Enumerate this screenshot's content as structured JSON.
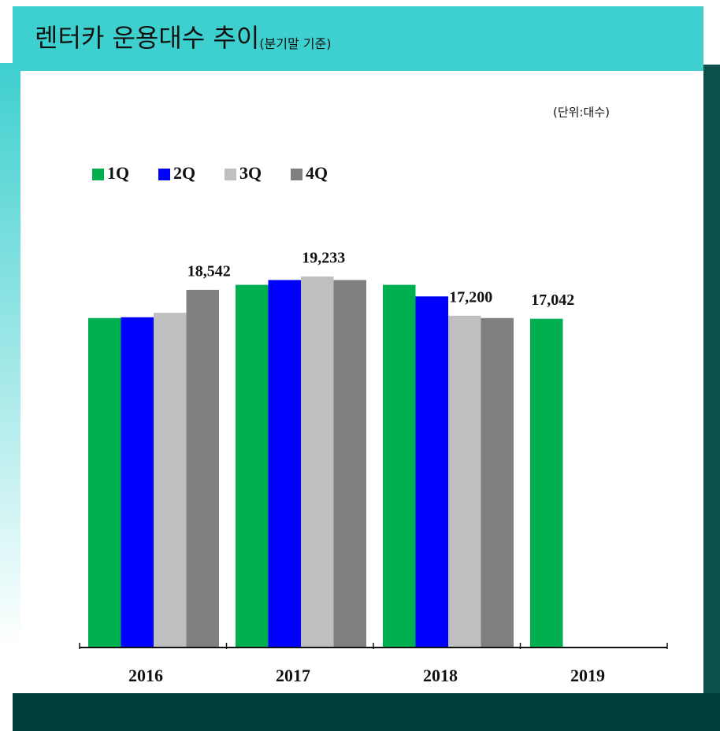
{
  "chart_data": {
    "type": "bar",
    "title": "렌터카 운용대수 추이",
    "subtitle": "(분기말 기준)",
    "unit_label": "(단위:대수)",
    "categories": [
      "2016",
      "2017",
      "2018",
      "2019"
    ],
    "series": [
      {
        "name": "1Q",
        "color": "#00b050",
        "values": [
          17080,
          18800,
          18800,
          17042
        ],
        "value_labels": [
          null,
          null,
          null,
          "17,042"
        ]
      },
      {
        "name": "2Q",
        "color": "#0000ff",
        "values": [
          17120,
          19050,
          18200,
          null
        ],
        "value_labels": [
          null,
          null,
          null,
          null
        ]
      },
      {
        "name": "3Q",
        "color": "#bfbfbf",
        "values": [
          17350,
          19233,
          17200,
          null
        ],
        "value_labels": [
          null,
          "19,233",
          "17,200",
          null
        ]
      },
      {
        "name": "4Q",
        "color": "#808080",
        "values": [
          18542,
          19050,
          17080,
          null
        ],
        "value_labels": [
          "18,542",
          null,
          null,
          null
        ]
      }
    ]
  }
}
